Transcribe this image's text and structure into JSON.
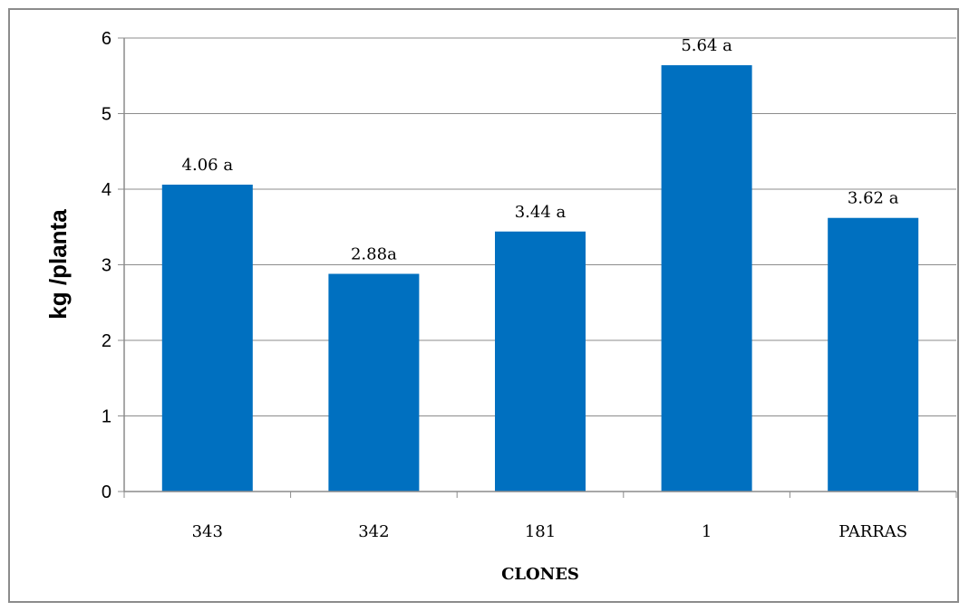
{
  "chart_data": {
    "type": "bar",
    "categories": [
      "343",
      "342",
      "181",
      "1",
      "PARRAS"
    ],
    "values": [
      4.06,
      2.88,
      3.44,
      5.64,
      3.62
    ],
    "data_labels": [
      "4.06 a",
      "2.88a",
      "3.44 a",
      "5.64 a",
      "3.62 a"
    ],
    "title": "",
    "xlabel": "CLONES",
    "ylabel": "kg /planta",
    "ylim": [
      0,
      6
    ],
    "yticks": [
      "0",
      "1",
      "2",
      "3",
      "4",
      "5",
      "6"
    ],
    "grid": true,
    "legend": "none",
    "bar_color": "#0070C0",
    "grid_color": "#8c8c8c"
  }
}
